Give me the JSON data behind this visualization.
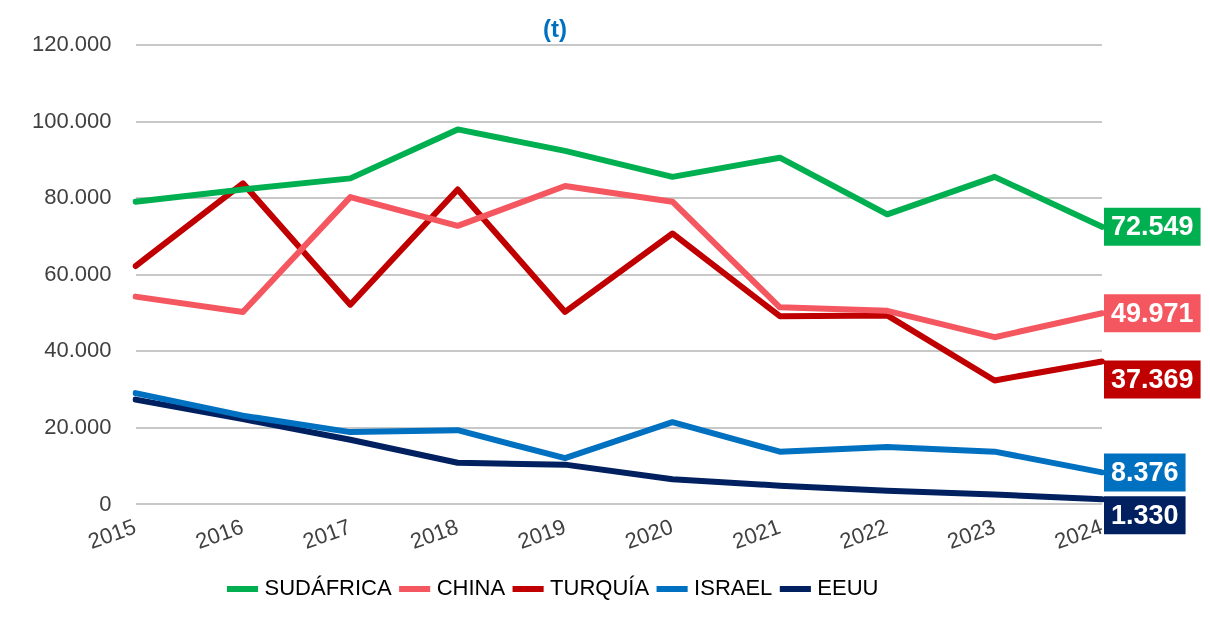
{
  "chart_data": {
    "type": "line",
    "title": "(t)",
    "categories": [
      "2015",
      "2016",
      "2017",
      "2018",
      "2019",
      "2020",
      "2021",
      "2022",
      "2023",
      "2024"
    ],
    "series": [
      {
        "name": "SUDÁFRICA",
        "color": "#00b050",
        "values": [
          79100,
          82300,
          85200,
          98000,
          92400,
          85600,
          90600,
          75800,
          85600,
          72549
        ],
        "value_labels": [
          null,
          null,
          null,
          null,
          null,
          null,
          null,
          null,
          null,
          "72.549"
        ]
      },
      {
        "name": "CHINA",
        "color": "#f4575f",
        "values": [
          54300,
          50300,
          80300,
          72800,
          83200,
          79100,
          51500,
          50600,
          43700,
          49971
        ],
        "value_labels": [
          null,
          null,
          null,
          null,
          null,
          null,
          null,
          null,
          null,
          "49.971"
        ]
      },
      {
        "name": "TURQUÍA",
        "color": "#c00000",
        "values": [
          62300,
          83900,
          52200,
          82300,
          50300,
          70800,
          49200,
          49400,
          32400,
          37369
        ],
        "value_labels": [
          null,
          null,
          null,
          null,
          null,
          null,
          null,
          null,
          null,
          "37.369"
        ]
      },
      {
        "name": "ISRAEL",
        "color": "#0070c0",
        "values": [
          29100,
          23200,
          18900,
          19400,
          12100,
          21500,
          13800,
          15000,
          13800,
          8376
        ],
        "value_labels": [
          null,
          null,
          null,
          null,
          null,
          null,
          null,
          null,
          null,
          "8.376"
        ]
      },
      {
        "name": "EEUU",
        "color": "#002060",
        "values": [
          27400,
          22300,
          16900,
          10900,
          10400,
          6600,
          4900,
          3600,
          2600,
          1330
        ],
        "value_labels": [
          null,
          null,
          null,
          null,
          null,
          null,
          null,
          null,
          null,
          "1.330"
        ]
      }
    ],
    "ylim": [
      0,
      120000
    ],
    "yticks": [
      {
        "value": 0,
        "label": "0"
      },
      {
        "value": 20000,
        "label": "20.000"
      },
      {
        "value": 40000,
        "label": "40.000"
      },
      {
        "value": 60000,
        "label": "60.000"
      },
      {
        "value": 80000,
        "label": "80.000"
      },
      {
        "value": 100000,
        "label": "100.000"
      },
      {
        "value": 120000,
        "label": "120.000"
      }
    ],
    "grid": "y",
    "legend": "bottom",
    "marker": "none",
    "line_style": "solid"
  }
}
